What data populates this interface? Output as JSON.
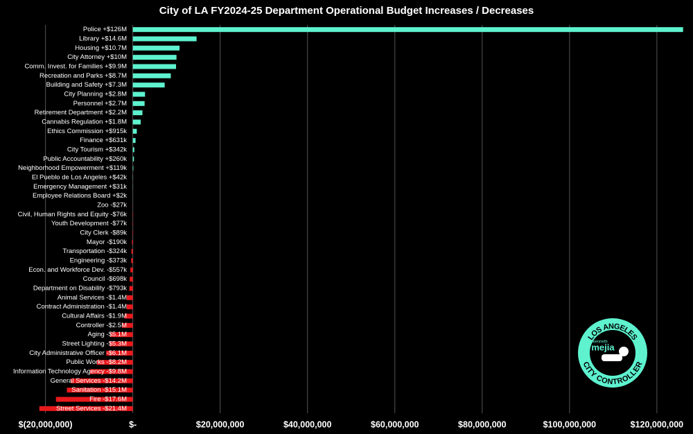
{
  "chart_data": {
    "type": "bar",
    "orientation": "horizontal",
    "title": "City of LA FY2024-25 Department Operational Budget Increases / Decreases",
    "categories": [
      "Police +$126M",
      "Library +$14.6M",
      "Housing +$10.7M",
      "City Attorney +$10M",
      "Comm. Invest. for Families +$9.9M",
      "Recreation and Parks +$8.7M",
      "Building and Safety +$7.3M",
      "City Planning +$2.8M",
      "Personnel +$2.7M",
      "Retirement Department +$2.2M",
      "Cannabis Regulation +$1.8M",
      "Ethics Commission +$915k",
      "Finance +$631k",
      "City Tourism +$342k",
      "Public Accountability +$260k",
      "Neighborhood Empowerment +$119k",
      "El Pueblo de Los Angeles +$42k",
      "Emergency Management +$31k",
      "Employee Relations Board +$2k",
      "Zoo -$27k",
      "Civil, Human Rights and Equity -$76k",
      "Youth Development -$77k",
      "City Clerk -$89k",
      "Mayor -$190k",
      "Transportation -$324k",
      "Engineering -$373k",
      "Econ. and Workforce Dev. -$557k",
      "Council -$698k",
      "Department on Disability -$793k",
      "Animal Services -$1.4M",
      "Contract Administration -$1.4M",
      "Cultural Affairs -$1.9M",
      "Controller -$2.5M",
      "Aging -$5.1M",
      "Street Lighting -$5.3M",
      "City Administrative Officer -$6.1M",
      "Public Works -$8.2M",
      "Information Technology Agency -$9.8M",
      "General Services -$14.2M",
      "Sanitation -$15.1M",
      "Fire -$17.6M",
      "Street Services -$21.4M"
    ],
    "values": [
      126000000,
      14600000,
      10700000,
      10000000,
      9900000,
      8700000,
      7300000,
      2800000,
      2700000,
      2200000,
      1800000,
      915000,
      631000,
      342000,
      260000,
      119000,
      42000,
      31000,
      2000,
      -27000,
      -76000,
      -77000,
      -89000,
      -190000,
      -324000,
      -373000,
      -557000,
      -698000,
      -793000,
      -1400000,
      -1400000,
      -1900000,
      -2500000,
      -5100000,
      -5300000,
      -6100000,
      -8200000,
      -9800000,
      -14200000,
      -15100000,
      -17600000,
      -21400000
    ],
    "positive_color": "#5ef2cf",
    "negative_color": "#e8191c",
    "xlim": [
      -22000000,
      127000000
    ],
    "xticks": [
      {
        "value": -20000000,
        "label": "$(20,000,000)"
      },
      {
        "value": 0,
        "label": "$-"
      },
      {
        "value": 20000000,
        "label": "$20,000,000"
      },
      {
        "value": 40000000,
        "label": "$40,000,000"
      },
      {
        "value": 60000000,
        "label": "$60,000,000"
      },
      {
        "value": 80000000,
        "label": "$80,000,000"
      },
      {
        "value": 100000000,
        "label": "$100,000,000"
      },
      {
        "value": 120000000,
        "label": "$120,000,000"
      }
    ],
    "grid": true
  },
  "logo": {
    "top_text": "LOS ANGELES",
    "bottom_text": "CITY CONTROLLER",
    "first_name": "kenneth",
    "name": "mejia"
  }
}
